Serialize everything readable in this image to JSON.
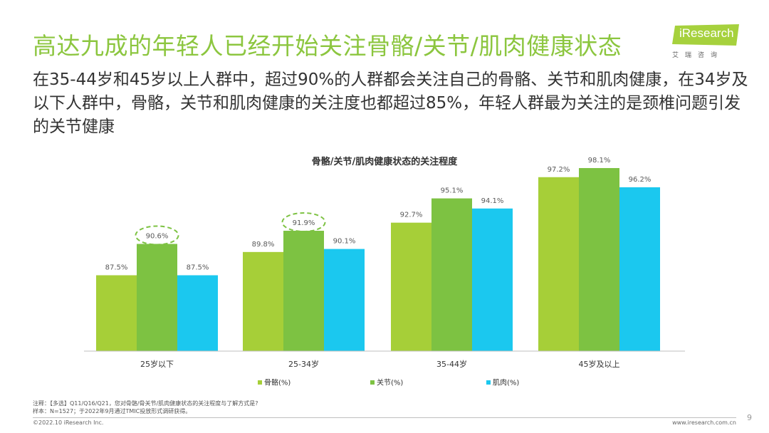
{
  "slide": {
    "title": "高达九成的年轻人已经开始关注骨骼/关节/肌肉健康状态",
    "subtitle": "在35-44岁和45岁以上人群中，超过90%的人群都会关注自己的骨骼、关节和肌肉健康，在34岁及以下人群中，骨骼，关节和肌肉健康的关注度也都超过85%，年轻人群最为关注的是颈椎问题引发的关节健康",
    "logo_text": "iResearch",
    "logo_subtext": "艾瑞咨询",
    "footnote_line1": "注释：【多选】Q11/Q16/Q21，您对骨骼/骨关节/肌肉健康状态的关注程度与了解方式是?",
    "footnote_line2": "样本：N=1527；于2022年9月通过TMIC投放形式调研获得。",
    "copyright": "©2022.10 iResearch Inc.",
    "website": "www.iresearch.com.cn",
    "page_number": "9"
  },
  "colors": {
    "title_green": "#8cc63f",
    "bone": "#a6cf38",
    "joint": "#7dc242",
    "muscle": "#1bc8ef"
  },
  "chart_data": {
    "type": "bar",
    "title": "骨骼/关节/肌肉健康状态的关注程度",
    "categories": [
      "25岁以下",
      "25-34岁",
      "35-44岁",
      "45岁及以上"
    ],
    "series": [
      {
        "name": "骨骼(%)",
        "values": [
          87.5,
          89.8,
          92.7,
          97.2
        ],
        "labels": [
          "87.5%",
          "89.8%",
          "92.7%",
          "97.2%"
        ]
      },
      {
        "name": "关节(%)",
        "values": [
          90.6,
          91.9,
          95.1,
          98.1
        ],
        "labels": [
          "90.6%",
          "91.9%",
          "95.1%",
          "98.1%"
        ]
      },
      {
        "name": "肌肉(%)",
        "values": [
          87.5,
          90.1,
          94.1,
          96.2
        ],
        "labels": [
          "87.5%",
          "90.1%",
          "94.1%",
          "96.2%"
        ]
      }
    ],
    "ylim": [
      80,
      99
    ],
    "legend_position": "bottom",
    "grid": false,
    "highlighted": [
      "90.6%",
      "91.9%"
    ]
  }
}
